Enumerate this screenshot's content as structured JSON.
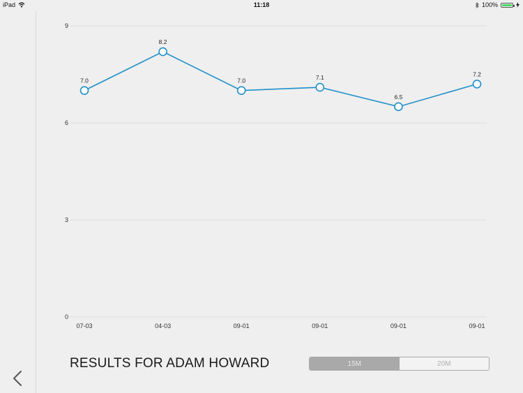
{
  "status_bar": {
    "device": "iPad",
    "wifi_icon": "wifi-icon",
    "time": "11:18",
    "bluetooth_icon": "bluetooth-icon",
    "battery_percent": "100%",
    "battery_level": 1.0,
    "charging_icon": "charging-bolt-icon"
  },
  "sidebar": {
    "back_icon": "chevron-left-icon"
  },
  "chart_data": {
    "type": "line",
    "categories": [
      "07-03",
      "04-03",
      "09-01",
      "09-01",
      "09-01",
      "09-01"
    ],
    "values": [
      7.0,
      8.2,
      7.0,
      7.1,
      6.5,
      7.2
    ],
    "data_labels": [
      "7.0",
      "8.2",
      "7.0",
      "7.1",
      "6.5",
      "7.2"
    ],
    "yticks": [
      "0",
      "3",
      "6",
      "9"
    ],
    "ylim": [
      0,
      9
    ],
    "grid": true,
    "colors": {
      "line": "#1e90c8",
      "grid": "#dcdcdc",
      "point_fill": "#ffffff"
    }
  },
  "footer": {
    "results_title": "RESULTS FOR ADAM HOWARD",
    "segments": [
      {
        "label": "15M",
        "selected": true
      },
      {
        "label": "20M",
        "selected": false
      }
    ]
  }
}
